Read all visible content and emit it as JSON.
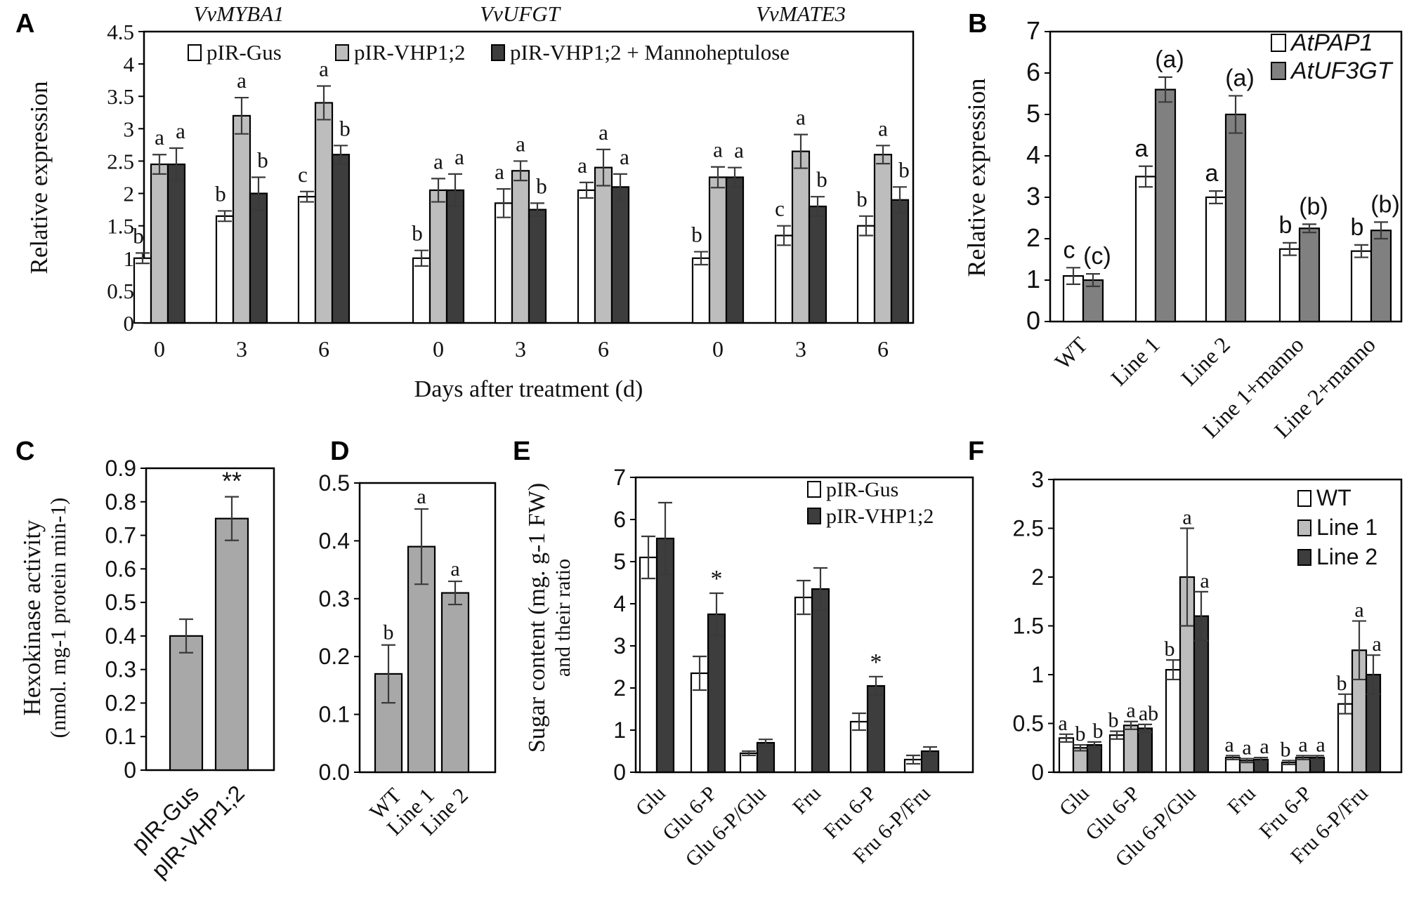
{
  "chart_data": [
    {
      "panel": "A",
      "type": "bar",
      "groups": [
        "VvMYBA1",
        "VvUFGT",
        "VvMATE3"
      ],
      "categories": [
        "0",
        "3",
        "6",
        "0",
        "3",
        "6",
        "0",
        "3",
        "6"
      ],
      "xlabel": "Days after treatment (d)",
      "ylabel": "Relative expression",
      "ylim": [
        0,
        4.5
      ],
      "yticks": [
        "0",
        "0.5",
        "1",
        "1.5",
        "2",
        "2.5",
        "3",
        "3.5",
        "4",
        "4.5"
      ],
      "legend": "top",
      "series": [
        {
          "name": "pIR-Gus",
          "color": "#ffffff",
          "values": [
            1.0,
            1.65,
            1.95,
            1.0,
            1.85,
            2.05,
            1.0,
            1.35,
            1.5
          ],
          "errors": [
            0.08,
            0.08,
            0.08,
            0.12,
            0.22,
            0.12,
            0.1,
            0.15,
            0.15
          ],
          "labels": [
            "b",
            "b",
            "c",
            "b",
            "a",
            "a",
            "b",
            "c",
            "b"
          ]
        },
        {
          "name": "pIR-VHP1;2",
          "color": "#bdbdbd",
          "values": [
            2.45,
            3.2,
            3.4,
            2.05,
            2.35,
            2.4,
            2.25,
            2.65,
            2.6
          ],
          "errors": [
            0.15,
            0.28,
            0.26,
            0.18,
            0.15,
            0.28,
            0.16,
            0.26,
            0.14
          ],
          "labels": [
            "a",
            "a",
            "a",
            "a",
            "a",
            "a",
            "a",
            "a",
            "a"
          ]
        },
        {
          "name": "pIR-VHP1;2 + Mannoheptulose",
          "color": "#3d3d3d",
          "values": [
            2.45,
            2.0,
            2.6,
            2.05,
            1.75,
            2.1,
            2.25,
            1.8,
            1.9
          ],
          "errors": [
            0.25,
            0.25,
            0.14,
            0.25,
            0.1,
            0.2,
            0.15,
            0.15,
            0.2
          ],
          "labels": [
            "a",
            "b",
            "b",
            "a",
            "b",
            "a",
            "a",
            "b",
            "b"
          ]
        }
      ]
    },
    {
      "panel": "B",
      "type": "bar",
      "categories": [
        "WT",
        "Line 1",
        "Line 2",
        "Line 1+manno",
        "Line 2+manno"
      ],
      "ylabel": "Relative expression",
      "ylim": [
        0,
        7
      ],
      "yticks": [
        "0",
        "1",
        "2",
        "3",
        "4",
        "5",
        "6",
        "7"
      ],
      "legend": "top-right",
      "series": [
        {
          "name": "AtPAP1",
          "color": "#ffffff",
          "values": [
            1.1,
            3.5,
            3.0,
            1.75,
            1.7
          ],
          "errors": [
            0.2,
            0.25,
            0.15,
            0.15,
            0.15
          ],
          "labels": [
            "c",
            "a",
            "a",
            "b",
            "b"
          ]
        },
        {
          "name": "AtUF3GT",
          "color": "#808080",
          "values": [
            1.0,
            5.6,
            5.0,
            2.25,
            2.2
          ],
          "errors": [
            0.15,
            0.3,
            0.45,
            0.1,
            0.2
          ],
          "labels": [
            "(c)",
            "(a)",
            "(a)",
            "(b)",
            "(b)"
          ]
        }
      ]
    },
    {
      "panel": "C",
      "type": "bar",
      "categories": [
        "pIR-Gus",
        "pIR-VHP1;2"
      ],
      "ylabel": "Hexokinase activity",
      "ylabel2": "(nmol. mg-1 protein min-1)",
      "ylim": [
        0,
        0.9
      ],
      "yticks": [
        "0",
        "0.1",
        "0.2",
        "0.3",
        "0.4",
        "0.5",
        "0.6",
        "0.7",
        "0.8",
        "0.9"
      ],
      "series": [
        {
          "name": "activity",
          "color": "#a8a8a8",
          "values": [
            0.4,
            0.75
          ],
          "errors": [
            0.05,
            0.065
          ],
          "labels": [
            "",
            "**"
          ]
        }
      ]
    },
    {
      "panel": "D",
      "type": "bar",
      "categories": [
        "WT",
        "Line 1",
        "Line 2"
      ],
      "ylim": [
        0,
        0.5
      ],
      "yticks": [
        "0.0",
        "0.1",
        "0.2",
        "0.3",
        "0.4",
        "0.5"
      ],
      "series": [
        {
          "name": "activity",
          "color": "#a8a8a8",
          "values": [
            0.17,
            0.39,
            0.31
          ],
          "errors": [
            0.05,
            0.065,
            0.02
          ],
          "labels": [
            "b",
            "a",
            "a"
          ]
        }
      ]
    },
    {
      "panel": "E",
      "type": "bar",
      "categories": [
        "Glu",
        "Glu 6-P",
        "Glu 6-P/Glu",
        "Fru",
        "Fru 6-P",
        "Fru 6-P/Fru"
      ],
      "ylabel": "Sugar content (mg. g-1 FW)",
      "ylabel2": "and their ratio",
      "ylim": [
        0,
        7
      ],
      "yticks": [
        "0",
        "1",
        "2",
        "3",
        "4",
        "5",
        "6",
        "7"
      ],
      "legend": "top-right",
      "series": [
        {
          "name": "pIR-Gus",
          "color": "#ffffff",
          "values": [
            5.1,
            2.35,
            0.45,
            4.15,
            1.2,
            0.3
          ],
          "errors": [
            0.5,
            0.4,
            0.05,
            0.4,
            0.2,
            0.1
          ],
          "labels": [
            "",
            "",
            "",
            "",
            "",
            ""
          ]
        },
        {
          "name": "pIR-VHP1;2",
          "color": "#3d3d3d",
          "values": [
            5.55,
            3.75,
            0.7,
            4.35,
            2.05,
            0.5
          ],
          "errors": [
            0.85,
            0.5,
            0.08,
            0.5,
            0.22,
            0.1
          ],
          "labels": [
            "",
            "*",
            "",
            "",
            "*",
            ""
          ]
        }
      ]
    },
    {
      "panel": "F",
      "type": "bar",
      "categories": [
        "Glu",
        "Glu 6-P",
        "Glu 6-P/Glu",
        "Fru",
        "Fru 6-P",
        "Fru 6-P/Fru"
      ],
      "ylim": [
        0,
        3
      ],
      "yticks": [
        "0",
        "0.5",
        "1",
        "1.5",
        "2",
        "2.5",
        "3"
      ],
      "legend": "top-right",
      "series": [
        {
          "name": "WT",
          "color": "#ffffff",
          "values": [
            0.35,
            0.38,
            1.05,
            0.15,
            0.1,
            0.7
          ],
          "errors": [
            0.04,
            0.04,
            0.1,
            0.02,
            0.02,
            0.1
          ],
          "labels": [
            "a",
            "b",
            "b",
            "a",
            "b",
            "b"
          ]
        },
        {
          "name": "Line 1",
          "color": "#bdbdbd",
          "values": [
            0.25,
            0.48,
            2.0,
            0.12,
            0.15,
            1.25
          ],
          "errors": [
            0.03,
            0.04,
            0.5,
            0.02,
            0.02,
            0.3
          ],
          "labels": [
            "b",
            "a",
            "a",
            "a",
            "a",
            "a"
          ]
        },
        {
          "name": "Line 2",
          "color": "#3d3d3d",
          "values": [
            0.28,
            0.45,
            1.6,
            0.13,
            0.15,
            1.0
          ],
          "errors": [
            0.03,
            0.04,
            0.25,
            0.02,
            0.02,
            0.2
          ],
          "labels": [
            "b",
            "ab",
            "a",
            "a",
            "a",
            "a"
          ]
        }
      ]
    }
  ],
  "letters": [
    "A",
    "B",
    "C",
    "D",
    "E",
    "F"
  ]
}
